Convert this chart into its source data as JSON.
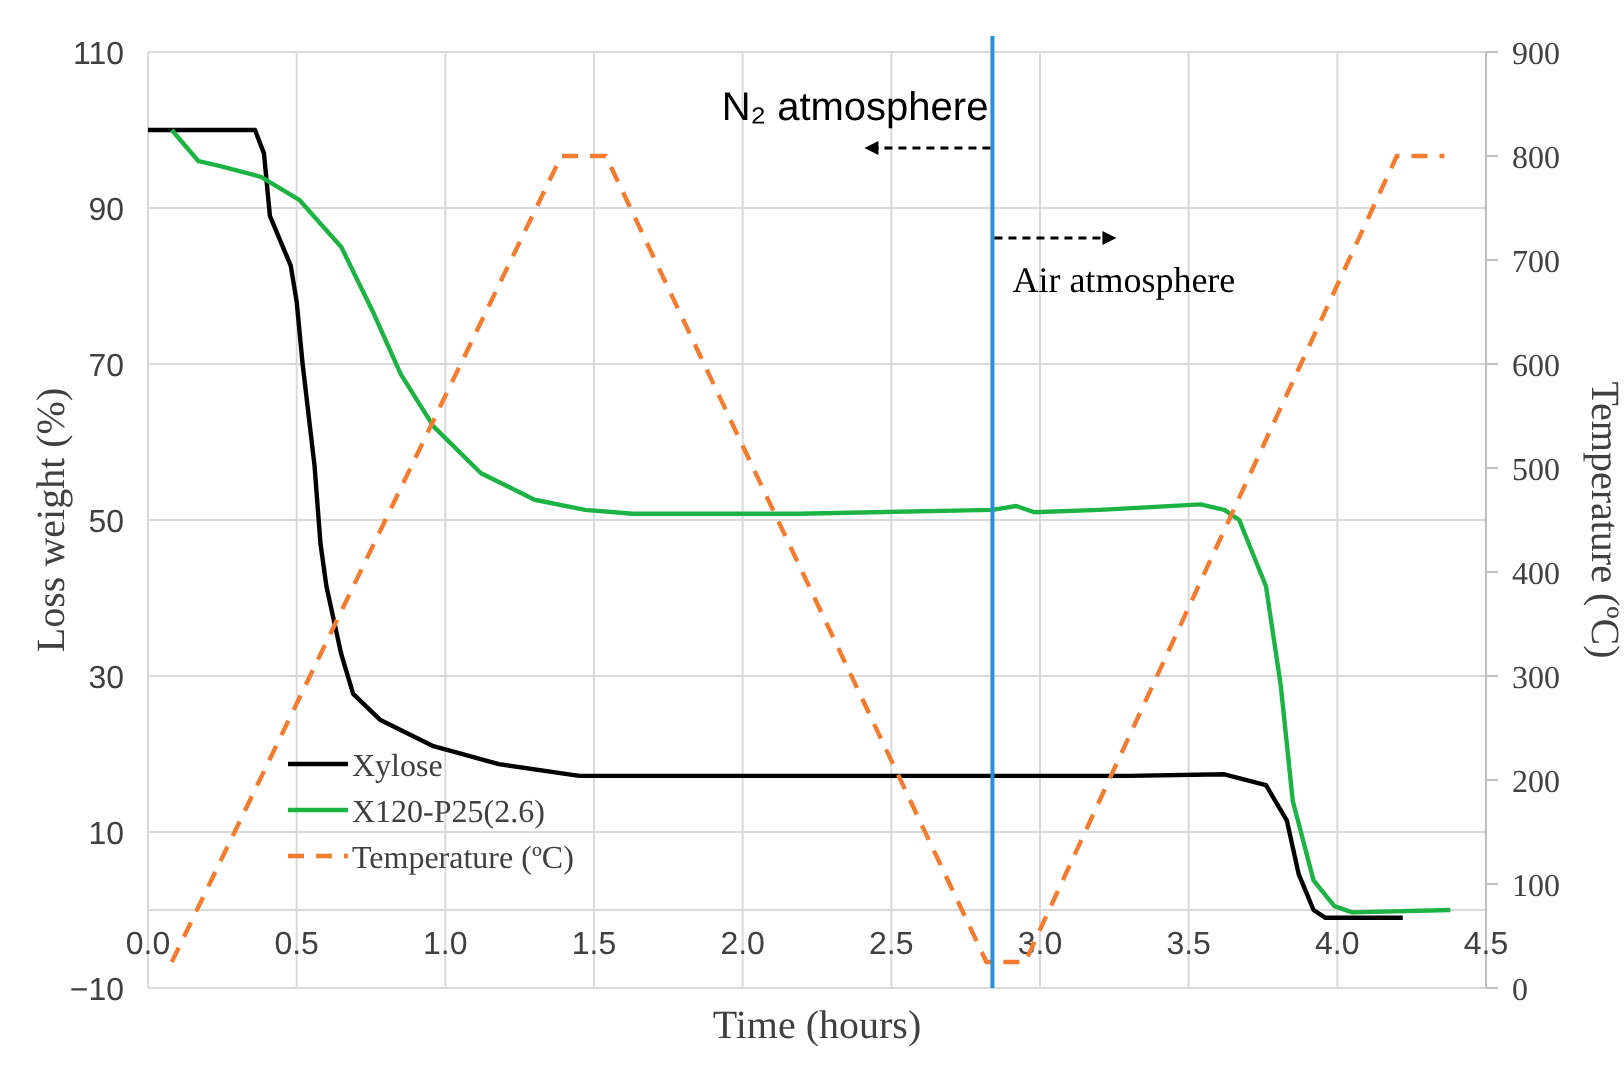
{
  "chart_data": {
    "type": "line",
    "xlabel": "Time (hours)",
    "ylabel": "Loss weight (%)",
    "y2label": "Temperature (ºC)",
    "xlim": [
      0,
      4.5
    ],
    "xticks": [
      {
        "value": 0,
        "label": "0.0"
      },
      0.5,
      {
        "value": 1,
        "label": "1.0"
      },
      1.5,
      {
        "value": 2,
        "label": "2.0"
      },
      2.5,
      {
        "value": 3,
        "label": "3.0"
      },
      3.5,
      {
        "value": 4,
        "label": "4.0"
      },
      4.5
    ],
    "ylim": [
      -10,
      110
    ],
    "yticks": [
      {
        "value": -10,
        "label": "−10"
      },
      10,
      30,
      50,
      70,
      90,
      110
    ],
    "y2lim": [
      0,
      900
    ],
    "y2ticks": [
      0,
      100,
      200,
      300,
      400,
      500,
      600,
      700,
      800,
      900
    ],
    "grid": true,
    "legend": "bottom left",
    "series": [
      {
        "name": "Xylose",
        "color": "#000000",
        "line_style": "solid",
        "x": [
          0,
          0.36,
          0.39,
          0.41,
          0.48,
          0.5,
          0.52,
          0.56,
          0.58,
          0.6,
          0.65,
          0.69,
          0.78,
          0.96,
          1.18,
          1.45,
          2.0,
          2.84,
          3.3,
          3.62,
          3.76,
          3.83,
          3.87,
          3.92,
          3.96,
          4.22
        ],
        "values": [
          100,
          100,
          97,
          89,
          82.6,
          78,
          70,
          57,
          47,
          41.5,
          32.8,
          27.7,
          24.4,
          21,
          18.7,
          17.2,
          17.2,
          17.2,
          17.2,
          17.4,
          16,
          11.5,
          4.6,
          0,
          -1,
          -1
        ]
      },
      {
        "name": "X120-P25(2.6)",
        "color": "#1db344",
        "line_style": "solid",
        "x": [
          0.08,
          0.17,
          0.24,
          0.38,
          0.51,
          0.65,
          0.76,
          0.85,
          0.96,
          1.12,
          1.3,
          1.47,
          1.63,
          2.19,
          2.84,
          2.92,
          2.98,
          3.2,
          3.54,
          3.62,
          3.67,
          3.76,
          3.81,
          3.85,
          3.92,
          3.99,
          4.05,
          4.38
        ],
        "values": [
          100,
          96,
          95.4,
          94,
          91,
          85,
          76.4,
          68.7,
          62,
          56,
          52.6,
          51.3,
          50.8,
          50.8,
          51.3,
          51.8,
          51,
          51.3,
          52,
          51.3,
          50,
          41.5,
          28.7,
          14,
          3.8,
          0.5,
          -0.3,
          0
        ]
      },
      {
        "name": "Temperature (ºC)",
        "color": "#f47c30",
        "line_style": "dashed",
        "axis": "y2",
        "x": [
          0.08,
          1.39,
          1.54,
          2.82,
          2.95,
          4.2,
          4.36
        ],
        "values": [
          25,
          800,
          800,
          25,
          25,
          800,
          800
        ]
      }
    ],
    "ref_lines": [
      {
        "axis": "x",
        "value": 2.84,
        "color": "#2b8fd8"
      }
    ],
    "annotations": [
      "N₂ atmosphere",
      "Air atmosphere"
    ]
  }
}
